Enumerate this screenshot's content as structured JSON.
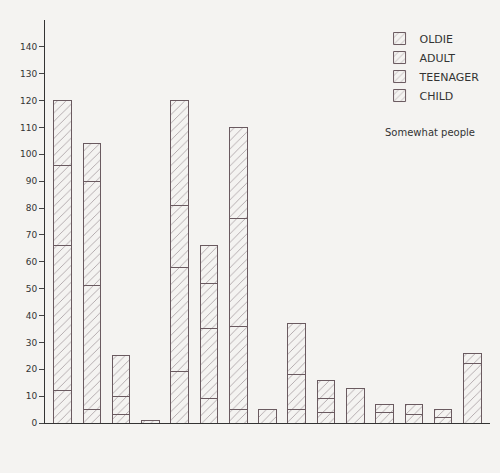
{
  "chart_data": {
    "type": "bar",
    "stacked": true,
    "categories": [
      null,
      null,
      null,
      null,
      null,
      null,
      null,
      null,
      null,
      null,
      null,
      null,
      null,
      null,
      null
    ],
    "series": [
      {
        "name": "CHILD",
        "color": "#eaa8b8",
        "values": [
          12,
          5,
          3,
          1,
          19,
          9,
          5,
          0,
          5,
          0,
          0,
          0,
          0,
          0,
          0
        ]
      },
      {
        "name": "TEENAGER",
        "color": "#eb9a7f",
        "values": [
          54,
          46,
          0,
          0,
          39,
          26,
          31,
          0,
          13,
          4,
          0,
          4,
          3,
          2,
          22
        ]
      },
      {
        "name": "ADULT",
        "color": "#8fb7cf",
        "values": [
          30,
          39,
          7,
          0,
          23,
          17,
          40,
          5,
          19,
          5,
          13,
          0,
          0,
          0,
          0
        ]
      },
      {
        "name": "OLDIE",
        "color": "#c98a9c",
        "values": [
          24,
          14,
          15,
          0,
          39,
          14,
          34,
          0,
          0,
          7,
          0,
          3,
          4,
          3,
          4
        ]
      }
    ],
    "annotations": [
      {
        "text": "Somewhat people"
      }
    ],
    "ylim": [
      0,
      150
    ],
    "yticks": [
      0,
      10,
      20,
      30,
      40,
      50,
      60,
      70,
      80,
      90,
      100,
      110,
      120,
      130,
      140
    ],
    "grid": false,
    "legend": "top right",
    "tick_labels": "y"
  }
}
